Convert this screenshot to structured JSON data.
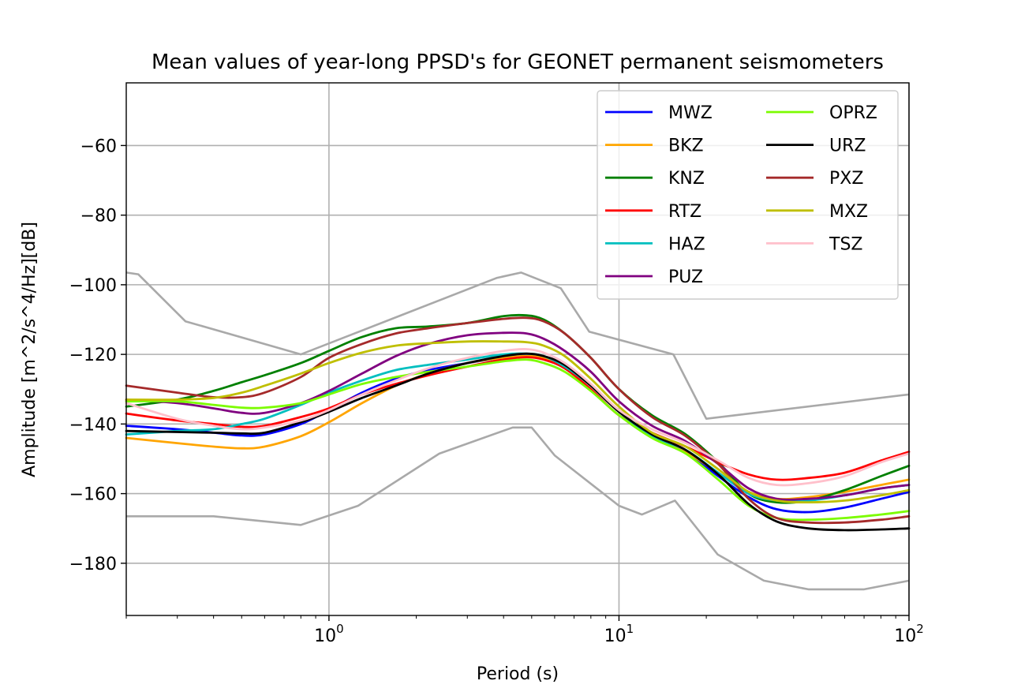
{
  "chart_data": {
    "type": "line",
    "title": "Mean values of year-long PPSD's for GEONET permanent seismometers",
    "xlabel": "Period (s)",
    "ylabel": "Amplitude [m^2/s^4/Hz][dB]",
    "xscale": "log",
    "xlim": [
      0.2,
      100
    ],
    "ylim": [
      -195,
      -42
    ],
    "grid": true,
    "legend_position": "top-right",
    "legend_columns": 2,
    "x_ticks": [
      {
        "value": 1,
        "base": "10",
        "exp": "0"
      },
      {
        "value": 10,
        "base": "10",
        "exp": "1"
      },
      {
        "value": 100,
        "base": "10",
        "exp": "2"
      }
    ],
    "y_ticks": [
      {
        "value": -60,
        "label": "−60"
      },
      {
        "value": -80,
        "label": "−80"
      },
      {
        "value": -100,
        "label": "−100"
      },
      {
        "value": -120,
        "label": "−120"
      },
      {
        "value": -140,
        "label": "−140"
      },
      {
        "value": -160,
        "label": "−160"
      },
      {
        "value": -180,
        "label": "−180"
      }
    ],
    "reference_color": "#a9a9a9",
    "x": [
      0.2,
      0.3,
      0.4,
      0.5,
      0.6,
      0.8,
      1.0,
      1.3,
      1.7,
      2.2,
      3.0,
      4.0,
      4.8,
      5.5,
      6.5,
      8.0,
      10.0,
      13.0,
      17.0,
      22.0,
      28.0,
      35.0,
      45.0,
      60.0,
      80.0,
      100.0
    ],
    "series": [
      {
        "name": "MWZ",
        "color": "#0000ff",
        "values": [
          -140.5,
          -141.5,
          -142.5,
          -143.3,
          -143,
          -140,
          -136,
          -131,
          -127,
          -124.5,
          -122.5,
          -121,
          -120.5,
          -121,
          -123.5,
          -129,
          -136.5,
          -143.5,
          -148,
          -155,
          -161,
          -164.5,
          -165.3,
          -164,
          -161.5,
          -159.5
        ]
      },
      {
        "name": "BKZ",
        "color": "#ffa500",
        "values": [
          -144,
          -145.5,
          -146.5,
          -147,
          -146.5,
          -143.5,
          -139.5,
          -134,
          -129,
          -125.5,
          -122.5,
          -121,
          -120.5,
          -121,
          -123.5,
          -129,
          -136.5,
          -143.5,
          -148,
          -154,
          -159.5,
          -161.5,
          -161,
          -159.5,
          -157.5,
          -156
        ]
      },
      {
        "name": "KNZ",
        "color": "#008000",
        "values": [
          -135,
          -133,
          -130.5,
          -128,
          -126,
          -122.5,
          -119,
          -115,
          -112.5,
          -112,
          -111,
          -109,
          -108.8,
          -110,
          -114,
          -121,
          -130,
          -137.5,
          -143,
          -151,
          -160,
          -162.5,
          -162,
          -159,
          -155,
          -152
        ]
      },
      {
        "name": "RTZ",
        "color": "#ff0000",
        "values": [
          -137,
          -139,
          -140,
          -140.8,
          -140.5,
          -138,
          -135.5,
          -131.5,
          -128.5,
          -126,
          -123.5,
          -121.5,
          -120.8,
          -121.5,
          -124,
          -130,
          -137.5,
          -142.5,
          -146.5,
          -151,
          -154.5,
          -156,
          -155.5,
          -154,
          -150.5,
          -148
        ]
      },
      {
        "name": "HAZ",
        "color": "#00bfbf",
        "values": [
          -143,
          -142,
          -141.5,
          -140,
          -138.5,
          -134.5,
          -131,
          -127.5,
          -124.5,
          -123,
          -121.5,
          -120,
          -119.8,
          -120.5,
          -123.5,
          -129,
          -136.5,
          -143.5,
          -147.5,
          -154,
          -160,
          -162,
          -162,
          -160.5,
          -158.5,
          -157.5
        ]
      },
      {
        "name": "PUZ",
        "color": "#800080",
        "values": [
          -133,
          -134,
          -135.5,
          -136.8,
          -136.8,
          -134,
          -130.5,
          -125.5,
          -120.5,
          -117,
          -114.5,
          -113.8,
          -114,
          -115.5,
          -119,
          -125,
          -133.5,
          -140.5,
          -145,
          -151.5,
          -158.5,
          -161.5,
          -161.5,
          -160.5,
          -158.5,
          -157.5
        ]
      },
      {
        "name": "OPRZ",
        "color": "#7cfc00",
        "values": [
          -133.5,
          -133.5,
          -134.5,
          -135.3,
          -135.3,
          -134,
          -131.5,
          -128.5,
          -126.5,
          -125,
          -123.5,
          -122,
          -121.5,
          -122.5,
          -125,
          -130.5,
          -137.5,
          -144,
          -148.5,
          -156,
          -163.5,
          -167,
          -167.5,
          -167,
          -166,
          -165
        ]
      },
      {
        "name": "URZ",
        "color": "#000000",
        "values": [
          -142,
          -142.3,
          -142.5,
          -142.7,
          -142.5,
          -139.5,
          -136.5,
          -132.5,
          -129,
          -125.5,
          -122.5,
          -120.5,
          -119.8,
          -120.5,
          -123,
          -129,
          -136.5,
          -143,
          -147.5,
          -154.5,
          -163,
          -168,
          -170,
          -170.5,
          -170.3,
          -170
        ]
      },
      {
        "name": "PXZ",
        "color": "#a52a2a",
        "values": [
          -129,
          -131,
          -132.3,
          -132.3,
          -131,
          -126.5,
          -121,
          -117,
          -114,
          -112.5,
          -111,
          -109.8,
          -109.5,
          -110.5,
          -114,
          -121,
          -130,
          -138,
          -143.5,
          -151.5,
          -161.5,
          -167,
          -168.3,
          -168.3,
          -167.5,
          -166.5
        ]
      },
      {
        "name": "MXZ",
        "color": "#bfbf00",
        "values": [
          -133,
          -133,
          -132.5,
          -131,
          -129,
          -125.5,
          -122.5,
          -119.5,
          -117.5,
          -116.8,
          -116.3,
          -116.3,
          -116.5,
          -117.5,
          -120.5,
          -127,
          -135,
          -142.5,
          -146.5,
          -153,
          -159.5,
          -162,
          -162.5,
          -162,
          -160.5,
          -159
        ]
      },
      {
        "name": "TSZ",
        "color": "#ffc0cb",
        "values": [
          -134,
          -138.5,
          -140.5,
          -141.5,
          -141,
          -139,
          -136,
          -131.5,
          -127.5,
          -124,
          -121,
          -119,
          -118.5,
          -119.5,
          -122.5,
          -128.5,
          -136,
          -141.5,
          -145.5,
          -150.5,
          -155.5,
          -157.5,
          -157,
          -155,
          -151,
          -148.5
        ]
      }
    ],
    "reference_lines": [
      {
        "x": [
          0.2,
          0.22,
          0.32,
          0.8,
          3.8,
          4.6,
          6.3,
          7.9,
          15.4,
          20,
          100
        ],
        "y": [
          -96.5,
          -97,
          -110.5,
          -120,
          -98,
          -96.5,
          -101,
          -113.5,
          -120,
          -138.5,
          -131.5
        ]
      },
      {
        "x": [
          0.2,
          0.4,
          0.8,
          1.26,
          2.4,
          4.3,
          5.0,
          6.0,
          10,
          12,
          15.6,
          21.9,
          31.6,
          45,
          70,
          100
        ],
        "y": [
          -166.5,
          -166.5,
          -169,
          -163.5,
          -148.5,
          -141,
          -141,
          -149,
          -163.5,
          -166,
          -162,
          -177.5,
          -185,
          -187.5,
          -187.5,
          -185
        ]
      }
    ]
  }
}
